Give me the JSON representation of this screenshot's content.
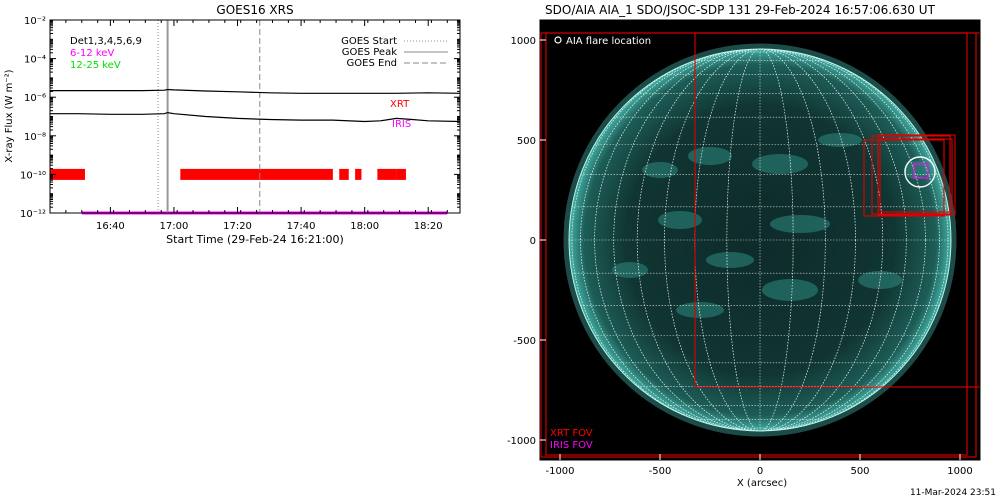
{
  "chart_data": [
    {
      "type": "line",
      "title": "GOES16 XRS",
      "xlabel": "Start Time (29-Feb-24 16:21:00)",
      "ylabel": "X-ray Flux (W m⁻²)",
      "y_scale": "log",
      "ylim": [
        1e-12,
        0.01
      ],
      "xlim": [
        "16:21",
        "18:30"
      ],
      "x_ticks": [
        "16:40",
        "17:00",
        "17:20",
        "17:40",
        "18:00",
        "18:20"
      ],
      "y_ticks": [
        "10⁻¹²",
        "10⁻¹⁰",
        "10⁻⁸",
        "10⁻⁶",
        "10⁻⁴",
        "10⁻²"
      ],
      "legend_left": {
        "text": "Det1,3,4,5,6,9",
        "color": "#000000"
      },
      "legend_right": [
        "GOES Start",
        "GOES Peak",
        "GOES End"
      ],
      "event_lines": {
        "start": "16:55",
        "peak": "16:58",
        "end": "17:27"
      },
      "series": [
        {
          "name": "6-12 keV",
          "color": "#ff00ff",
          "x": [
            "16:21",
            "16:30",
            "16:40",
            "16:50",
            "16:57",
            "16:58",
            "17:00",
            "17:10",
            "17:20",
            "17:30",
            "17:40",
            "17:50",
            "18:00",
            "18:10",
            "18:20",
            "18:30"
          ],
          "values": [
            2.2e-06,
            2.2e-06,
            2.2e-06,
            2.2e-06,
            2.3e-06,
            2.5e-06,
            2.4e-06,
            2.1e-06,
            1.9e-06,
            1.7e-06,
            1.6e-06,
            1.6e-06,
            1.6e-06,
            1.6e-06,
            1.7e-06,
            1.6e-06
          ]
        },
        {
          "name": "12-25 keV",
          "color": "#00dd00",
          "x": [
            "16:21",
            "16:30",
            "16:40",
            "16:50",
            "16:57",
            "16:58",
            "17:00",
            "17:10",
            "17:20",
            "17:30",
            "17:40",
            "17:50",
            "18:00",
            "18:05",
            "18:10",
            "18:15",
            "18:20",
            "18:30"
          ],
          "values": [
            1.4e-07,
            1.4e-07,
            1.3e-07,
            1.3e-07,
            1.4e-07,
            1.6e-07,
            1.4e-07,
            1e-07,
            8e-08,
            7e-08,
            6.5e-08,
            6.5e-08,
            5.5e-08,
            6e-08,
            8e-08,
            7e-08,
            6e-08,
            5.5e-08
          ]
        }
      ],
      "coverage": {
        "xrt": {
          "label": "XRT",
          "color": "#ff0000",
          "flux": 1e-10,
          "intervals": [
            [
              "16:21",
              "16:32"
            ],
            [
              "17:02",
              "17:50"
            ],
            [
              "17:52",
              "17:55"
            ],
            [
              "17:57",
              "17:59"
            ],
            [
              "18:04",
              "18:10"
            ],
            [
              "18:10",
              "18:13"
            ]
          ]
        },
        "iris": {
          "label": "IRIS",
          "color": "#ff00ff",
          "flux": 1e-12,
          "intervals": [
            [
              "16:31",
              "18:26"
            ]
          ]
        }
      }
    },
    {
      "type": "image",
      "title": "SDO/AIA AIA_1 SDO/JSOC-SDP 131 29-Feb-2024 16:57:06.630 UT",
      "xlabel": "X (arcsec)",
      "xlim": [
        -1100,
        1100
      ],
      "ylim": [
        -1100,
        1100
      ],
      "x_ticks": [
        -1000,
        -500,
        0,
        500,
        1000
      ],
      "y_ticks": [
        -1000,
        -500,
        0,
        500,
        1000
      ],
      "legend_note": "AIA flare location",
      "fov_legend": [
        {
          "label": "XRT FOV",
          "color": "#ff0000"
        },
        {
          "label": "IRIS FOV",
          "color": "#ff00ff"
        }
      ],
      "flare_location": {
        "x": 800,
        "y": 340,
        "r": 75
      },
      "xrt_fovs": [
        {
          "x1": -1070,
          "y1": -1075,
          "x2": 1035,
          "y2": 1035
        },
        {
          "x1": -1095,
          "y1": -1085,
          "x2": 1080,
          "y2": 1035
        },
        {
          "x1": -325,
          "y1": -735,
          "x2": 1100,
          "y2": 1035
        },
        {
          "x1": 520,
          "y1": 120,
          "x2": 920,
          "y2": 500
        },
        {
          "x1": 560,
          "y1": 130,
          "x2": 950,
          "y2": 520
        },
        {
          "x1": 590,
          "y1": 125,
          "x2": 975,
          "y2": 525
        },
        {
          "x1": 600,
          "y1": 140,
          "x2": 960,
          "y2": 505
        }
      ],
      "iris_fov": {
        "x1": 770,
        "y1": 310,
        "x2": 840,
        "y2": 380
      },
      "disk_radius": 955
    }
  ],
  "footer": {
    "date": "11-Mar-2024 23:51"
  }
}
